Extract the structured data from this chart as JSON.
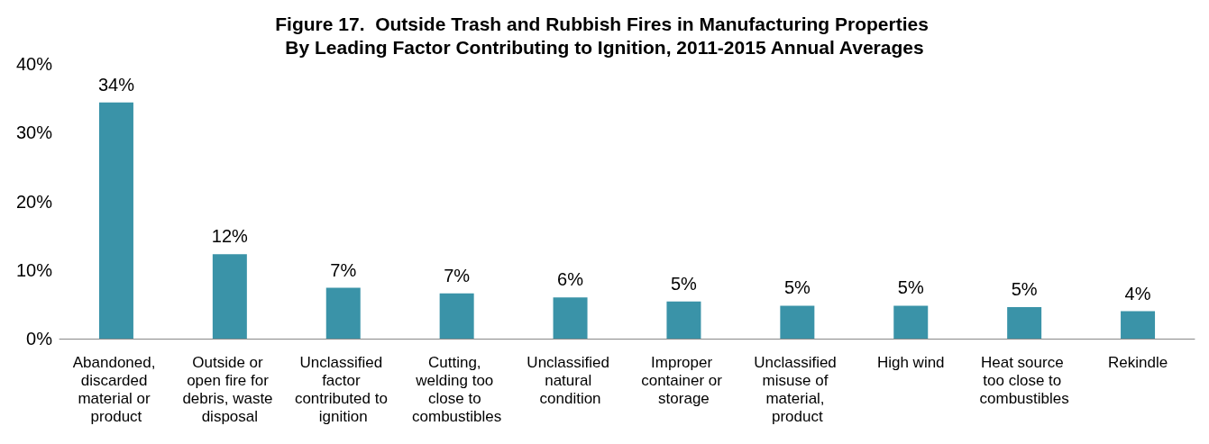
{
  "chart_data": {
    "type": "bar",
    "title": "Figure 17.  Outside Trash and Rubbish Fires in Manufacturing Properties By Leading Factor Contributing to Ignition, 2011-2015 Annual Averages",
    "categories": [
      "Abandoned, discarded material or product",
      "Outside or open fire for debris, waste disposal",
      "Unclassified factor contributed to ignition",
      "Cutting, welding too close to combustibles",
      "Unclassified natural condition",
      "Improper container or storage",
      "Unclassified misuse of material, product",
      "High wind",
      "Heat source too close to combustibles",
      "Rekindle"
    ],
    "values": [
      34.4,
      12.3,
      7.4,
      6.6,
      6.0,
      5.4,
      4.8,
      4.8,
      4.6,
      4.0
    ],
    "value_labels": [
      "34%",
      "12%",
      "7%",
      "7%",
      "6%",
      "5%",
      "5%",
      "5%",
      "5%",
      "4%"
    ],
    "color": "#3a93a8",
    "ylim": [
      0,
      40
    ],
    "yticks": [
      {
        "value": 0,
        "label": "0%"
      },
      {
        "value": 10,
        "label": "10%"
      },
      {
        "value": 20,
        "label": "20%"
      },
      {
        "value": 30,
        "label": "30%"
      },
      {
        "value": 40,
        "label": "40%"
      }
    ],
    "grid": false
  }
}
